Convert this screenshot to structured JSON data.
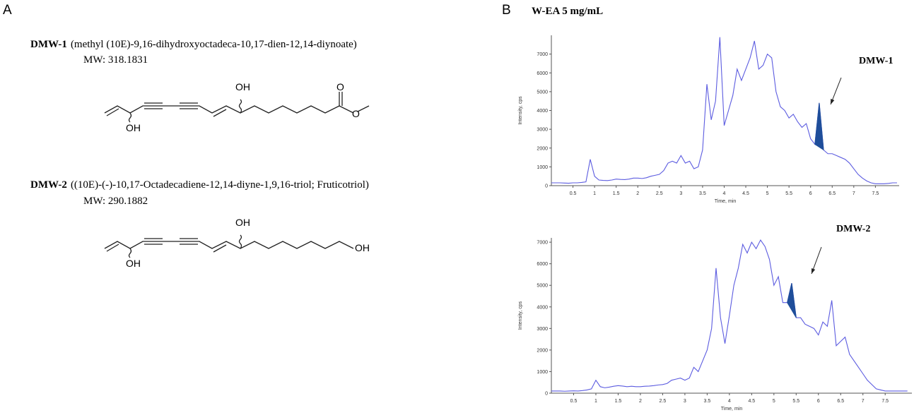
{
  "panel_a": {
    "label": "A",
    "compounds": [
      {
        "name": "DMW-1",
        "description": "(methyl (10E)-9,16-dihydroxyoctadeca-10,17-dien-12,14-diynoate)",
        "mw": "MW: 318.1831",
        "labels": [
          "OH",
          "OH",
          "O",
          "O"
        ]
      },
      {
        "name": "DMW-2",
        "description": "((10E)-(-)-10,17-Octadecadiene-12,14-diyne-1,9,16-triol;  Fruticotriol)",
        "mw": "MW: 290.1882",
        "labels": [
          "OH",
          "OH",
          "OH"
        ]
      }
    ]
  },
  "panel_b": {
    "label": "B",
    "title": "W-EA 5 mg/mL"
  },
  "chart_data": [
    {
      "type": "line",
      "ylabel": "Intensity, cps",
      "xlabel": "Time, min",
      "color": "#5c5ce0",
      "xlim": [
        0,
        8.05
      ],
      "ylim": [
        0,
        8000
      ],
      "xticks": [
        0.5,
        1.0,
        1.5,
        2.0,
        2.5,
        3.0,
        3.5,
        4.0,
        4.5,
        5.0,
        5.5,
        6.0,
        6.5,
        7.0,
        7.5
      ],
      "yticks": [
        0,
        1000,
        2000,
        3000,
        4000,
        5000,
        6000,
        7000
      ],
      "x": [
        0,
        0.1,
        0.2,
        0.3,
        0.4,
        0.5,
        0.6,
        0.7,
        0.8,
        0.9,
        1.0,
        1.1,
        1.2,
        1.3,
        1.4,
        1.5,
        1.6,
        1.7,
        1.8,
        1.9,
        2.0,
        2.1,
        2.2,
        2.3,
        2.4,
        2.5,
        2.6,
        2.7,
        2.8,
        2.9,
        3.0,
        3.1,
        3.2,
        3.3,
        3.4,
        3.5,
        3.6,
        3.7,
        3.8,
        3.9,
        4.0,
        4.1,
        4.2,
        4.3,
        4.4,
        4.5,
        4.6,
        4.7,
        4.8,
        4.9,
        5.0,
        5.1,
        5.2,
        5.3,
        5.4,
        5.5,
        5.6,
        5.7,
        5.8,
        5.9,
        6.0,
        6.1,
        6.2,
        6.3,
        6.4,
        6.5,
        6.6,
        6.7,
        6.8,
        6.9,
        7.0,
        7.1,
        7.2,
        7.3,
        7.4,
        7.5,
        7.6,
        7.7,
        7.8,
        7.9,
        8.0
      ],
      "values": [
        150,
        150,
        150,
        140,
        130,
        150,
        150,
        170,
        200,
        1400,
        500,
        300,
        280,
        270,
        300,
        350,
        330,
        320,
        350,
        400,
        400,
        380,
        420,
        500,
        550,
        600,
        800,
        1200,
        1300,
        1200,
        1600,
        1200,
        1300,
        900,
        1000,
        1900,
        5400,
        3500,
        4500,
        7900,
        3200,
        4000,
        4800,
        6200,
        5600,
        6200,
        6800,
        7700,
        6200,
        6400,
        7000,
        6800,
        5000,
        4200,
        4000,
        3600,
        3800,
        3400,
        3100,
        3300,
        2500,
        2200,
        4400,
        1900,
        1700,
        1700,
        1600,
        1500,
        1400,
        1200,
        900,
        600,
        400,
        250,
        150,
        100,
        100,
        100,
        120,
        150,
        150
      ],
      "highlight": [
        6.1,
        6.3
      ],
      "highlight_color": "#1f4e9a",
      "annotation": "DMW-1"
    },
    {
      "type": "line",
      "ylabel": "Intensity, cps",
      "xlabel": "Time, min",
      "color": "#5c5ce0",
      "xlim": [
        0,
        8.1
      ],
      "ylim": [
        0,
        7200
      ],
      "xticks": [
        0.5,
        1.0,
        1.5,
        2.0,
        2.5,
        3.0,
        3.5,
        4.0,
        4.5,
        5.0,
        5.5,
        6.0,
        6.5,
        7.0,
        7.5
      ],
      "yticks": [
        0,
        1000,
        2000,
        3000,
        4000,
        5000,
        6000,
        7000
      ],
      "x": [
        0,
        0.1,
        0.2,
        0.3,
        0.4,
        0.5,
        0.6,
        0.7,
        0.8,
        0.9,
        1.0,
        1.1,
        1.2,
        1.3,
        1.4,
        1.5,
        1.6,
        1.7,
        1.8,
        1.9,
        2.0,
        2.1,
        2.2,
        2.3,
        2.4,
        2.5,
        2.6,
        2.7,
        2.8,
        2.9,
        3.0,
        3.1,
        3.2,
        3.3,
        3.4,
        3.5,
        3.6,
        3.7,
        3.8,
        3.9,
        4.0,
        4.1,
        4.2,
        4.3,
        4.4,
        4.5,
        4.6,
        4.7,
        4.8,
        4.9,
        5.0,
        5.1,
        5.2,
        5.3,
        5.4,
        5.5,
        5.6,
        5.7,
        5.8,
        5.9,
        6.0,
        6.1,
        6.2,
        6.3,
        6.4,
        6.5,
        6.6,
        6.7,
        6.8,
        6.9,
        7.0,
        7.1,
        7.2,
        7.3,
        7.4,
        7.5,
        7.6,
        7.7,
        7.8,
        7.9,
        8.0
      ],
      "values": [
        100,
        100,
        100,
        90,
        100,
        110,
        100,
        120,
        150,
        200,
        600,
        300,
        250,
        280,
        320,
        350,
        330,
        300,
        320,
        300,
        300,
        320,
        330,
        350,
        380,
        400,
        450,
        600,
        650,
        700,
        600,
        700,
        1200,
        1000,
        1500,
        2000,
        3000,
        5800,
        3500,
        2300,
        3600,
        5000,
        5800,
        6900,
        6500,
        7000,
        6700,
        7100,
        6800,
        6200,
        5000,
        5400,
        4200,
        4200,
        5100,
        3500,
        3500,
        3200,
        3100,
        3000,
        2700,
        3300,
        3100,
        4300,
        2200,
        2400,
        2600,
        1800,
        1500,
        1200,
        900,
        600,
        400,
        200,
        150,
        100,
        100,
        100,
        100,
        100,
        100
      ],
      "highlight": [
        5.3,
        5.5
      ],
      "highlight_color": "#1f4e9a",
      "annotation": "DMW-2"
    }
  ]
}
